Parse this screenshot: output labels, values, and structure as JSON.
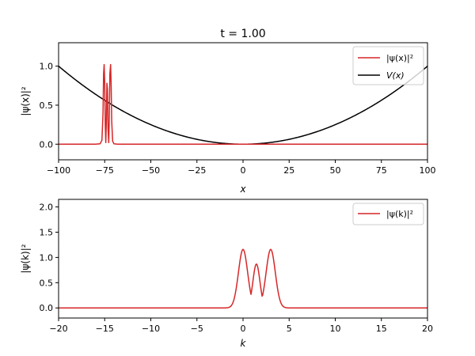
{
  "chart_data": [
    {
      "type": "line",
      "title": "t = 1.00",
      "xlabel": "x",
      "ylabel": "|ψ(x)|²",
      "xlim": [
        -100,
        100
      ],
      "ylim": [
        -0.2,
        1.3
      ],
      "xticks": [
        -100,
        -75,
        -50,
        -25,
        0,
        25,
        50,
        75,
        100
      ],
      "xtick_labels": [
        "−100",
        "−75",
        "−50",
        "−25",
        "0",
        "25",
        "50",
        "75",
        "100"
      ],
      "yticks": [
        0.0,
        0.5,
        1.0
      ],
      "ytick_labels": [
        "0.0",
        "0.5",
        "1.0"
      ],
      "legend_position": "top-right",
      "series": [
        {
          "name": "|ψ(x)|²",
          "color": "#d62728",
          "x": [
            -100,
            -80,
            -77.5,
            -76.5,
            -75.9,
            -75.6,
            -75.3,
            -75,
            -74.7,
            -74.4,
            -74.1,
            -73.8,
            -73.5,
            -73.2,
            -72.8,
            -72.5,
            -72.2,
            -71.8,
            -71.5,
            -71.2,
            -70.7,
            -70,
            -68,
            100
          ],
          "y": [
            0,
            0,
            0.005,
            0.05,
            0.4,
            0.9,
            1.02,
            0.8,
            0.25,
            0.02,
            0.3,
            0.78,
            0.7,
            0.2,
            0.02,
            0.35,
            0.9,
            1.02,
            0.75,
            0.3,
            0.04,
            0.005,
            0,
            0
          ]
        },
        {
          "name": "V(x)",
          "color": "#000000",
          "function": "quadratic",
          "x": [
            -100,
            -75,
            -50,
            -25,
            0,
            25,
            50,
            75,
            100
          ],
          "y": [
            1.0,
            0.5625,
            0.25,
            0.0625,
            0.0,
            0.0625,
            0.25,
            0.5625,
            1.0
          ]
        }
      ]
    },
    {
      "type": "line",
      "title": "",
      "xlabel": "k",
      "ylabel": "|ψ(k)|²",
      "xlim": [
        -20,
        20
      ],
      "ylim": [
        -0.2,
        2.15
      ],
      "xticks": [
        -20,
        -15,
        -10,
        -5,
        0,
        5,
        10,
        15,
        20
      ],
      "xtick_labels": [
        "−20",
        "−15",
        "−10",
        "−5",
        "0",
        "5",
        "10",
        "15",
        "20"
      ],
      "yticks": [
        0.0,
        0.5,
        1.0,
        1.5,
        2.0
      ],
      "ytick_labels": [
        "0.0",
        "0.5",
        "1.0",
        "1.5",
        "2.0"
      ],
      "legend_position": "top-right",
      "series": [
        {
          "name": "|ψ(k)|²",
          "color": "#d62728",
          "peaks": [
            {
              "center": 0.0,
              "height": 1.16,
              "width": 0.5
            },
            {
              "center": 1.45,
              "height": 0.87,
              "width": 0.38
            },
            {
              "center": 3.0,
              "height": 1.16,
              "width": 0.5
            }
          ],
          "sample_range": [
            -20,
            20
          ],
          "sample_points": 600
        }
      ]
    }
  ]
}
